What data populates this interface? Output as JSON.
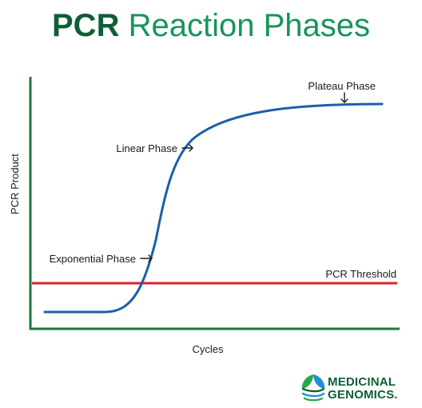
{
  "title": {
    "strong": "PCR",
    "rest": "Reaction Phases"
  },
  "axes": {
    "x_label": "Cycles",
    "y_label": "PCR Product"
  },
  "phases": {
    "plateau": "Plateau Phase",
    "linear": "Linear Phase",
    "exponential": "Exponential Phase"
  },
  "threshold": {
    "label": "PCR Threshold"
  },
  "logo": {
    "line1": "MEDICINAL",
    "line2": "GENOMICS.",
    "icon": "leaf-helix-icon"
  },
  "colors": {
    "title_dark": "#0e5f36",
    "title_light": "#16955a",
    "axis": "#1a7a3c",
    "curve": "#1d5fa8",
    "threshold": "#e0202b",
    "logo_text": "#0e5f36",
    "logo_accent_blue": "#1e8fd0",
    "logo_accent_green": "#2aa84a"
  }
}
